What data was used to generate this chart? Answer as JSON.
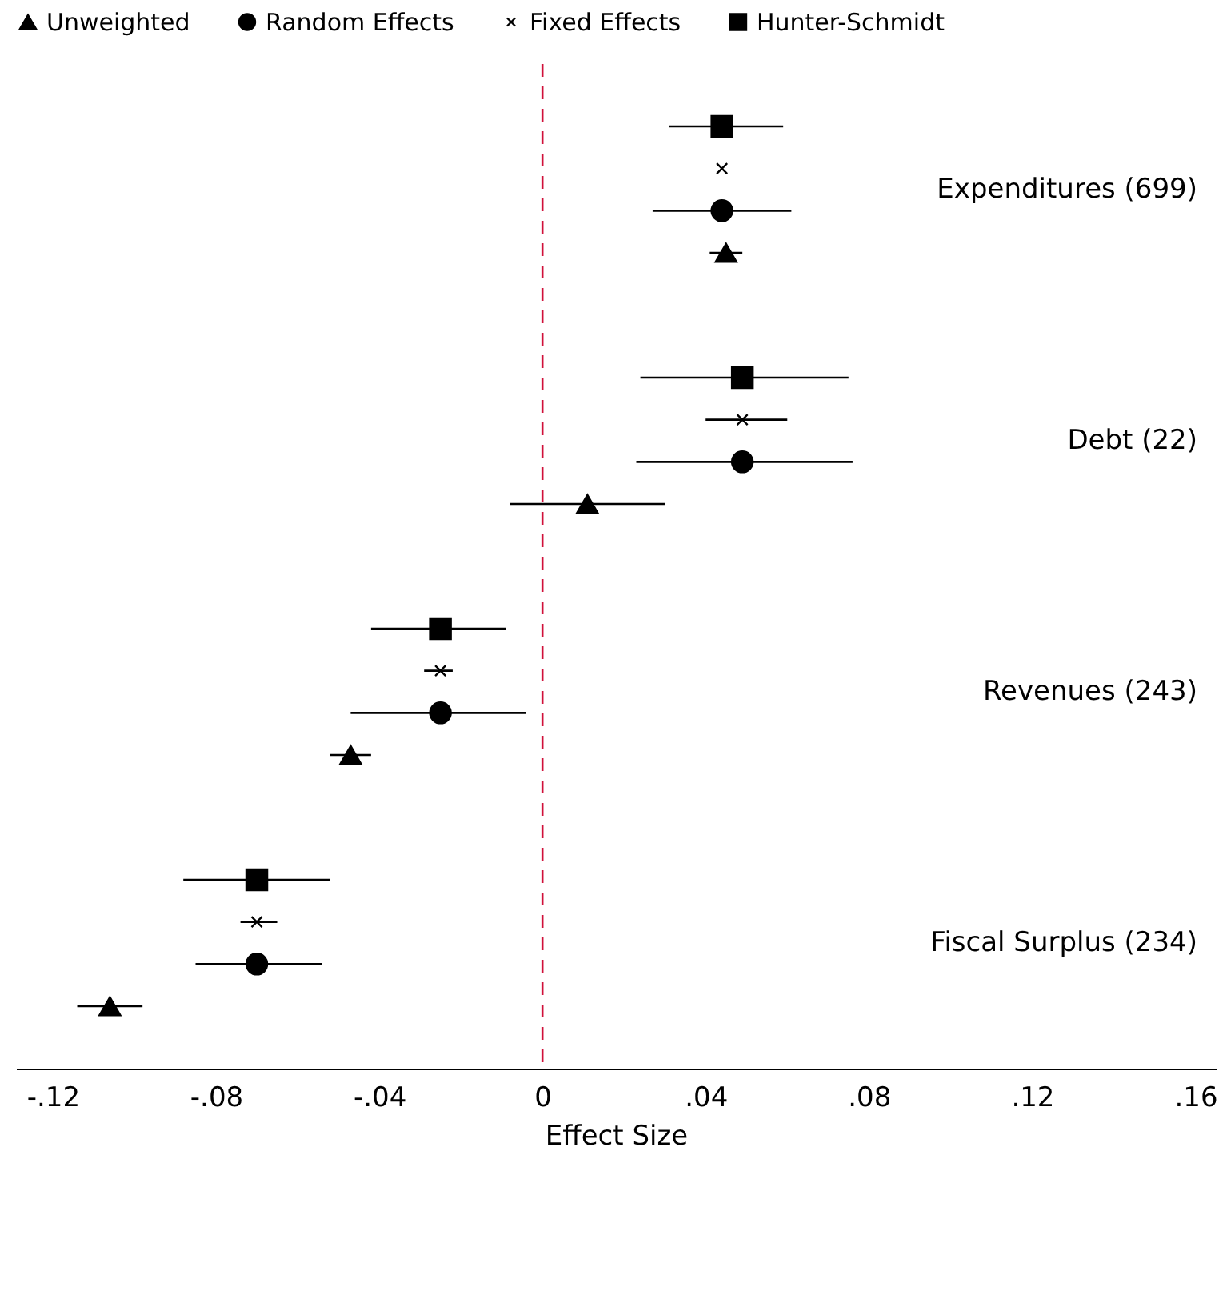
{
  "chart_data": {
    "type": "scatter",
    "orientation": "horizontal",
    "xlabel": "Effect Size",
    "legend": "top",
    "grid": false,
    "categories": [
      "Expenditures (699)",
      "Debt (22)",
      "Revenues (243)",
      "Fiscal Surplus (234)"
    ],
    "series": [
      {
        "name": "Unweighted",
        "color": "#000000",
        "marker": "triangle",
        "values": [
          0.045,
          0.011,
          -0.047,
          -0.106
        ],
        "errors": [
          [
            0.041,
            0.049
          ],
          [
            -0.008,
            0.03
          ],
          [
            -0.052,
            -0.042
          ],
          [
            -0.114,
            -0.098
          ]
        ]
      },
      {
        "name": "Random Effects",
        "color": "#000000",
        "marker": "circle",
        "values": [
          0.044,
          0.049,
          -0.025,
          -0.07
        ],
        "errors": [
          [
            0.027,
            0.061
          ],
          [
            0.023,
            0.076
          ],
          [
            -0.047,
            -0.004
          ],
          [
            -0.085,
            -0.054
          ]
        ]
      },
      {
        "name": "Fixed Effects",
        "color": "#000000",
        "marker": "cross",
        "values": [
          0.044,
          0.049,
          -0.025,
          -0.07
        ],
        "errors": [
          null,
          [
            0.04,
            0.06
          ],
          [
            -0.029,
            -0.022
          ],
          [
            -0.074,
            -0.065
          ]
        ]
      },
      {
        "name": "Hunter-Schmidt",
        "color": "#000000",
        "marker": "square",
        "values": [
          0.044,
          0.049,
          -0.025,
          -0.07
        ],
        "errors": [
          [
            0.031,
            0.059
          ],
          [
            0.024,
            0.075
          ],
          [
            -0.042,
            -0.009
          ],
          [
            -0.088,
            -0.052
          ]
        ]
      }
    ],
    "xlim": [
      -0.129,
      0.165
    ],
    "xticks": [
      {
        "value": -0.12,
        "label": "-.12"
      },
      {
        "value": -0.08,
        "label": "-.08"
      },
      {
        "value": -0.04,
        "label": "-.04"
      },
      0,
      {
        "value": 0.04,
        "label": ".04"
      },
      {
        "value": 0.08,
        "label": ".08"
      },
      {
        "value": 0.12,
        "label": ".12"
      },
      {
        "value": 0.16,
        "label": ".16"
      }
    ],
    "ref_lines": [
      {
        "axis": "x",
        "value": 0,
        "color": "#d0103a",
        "line_style": "dashed"
      }
    ]
  }
}
